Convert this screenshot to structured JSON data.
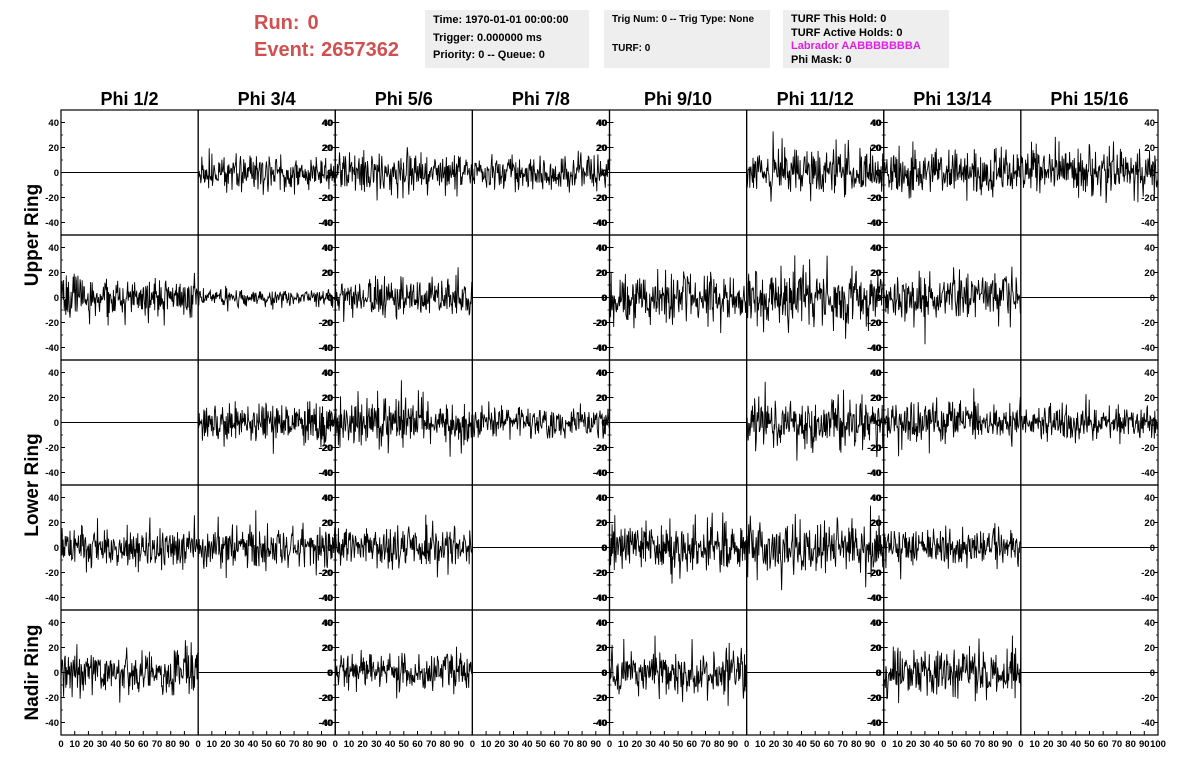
{
  "header": {
    "run_label": "Run:",
    "run_value": "0",
    "event_label": "Event:",
    "event_value": "2657362",
    "time_text": "Time: 1970-01-01 00:00:00",
    "trigger_text": "Trigger: 0.000000 ms",
    "priority_text": "Priority: 0 -- Queue: 0",
    "trig_num_text": "Trig Num: 0 -- Trig Type: None",
    "turf_text": "TURF: 0",
    "turf_hold_text": "TURF This Hold: 0",
    "turf_active_text": "TURF Active Holds: 0",
    "labrador_text": "Labrador AABBBBBBBA",
    "phi_mask_text": "Phi Mask: 0",
    "labrador_color": "#e020e0",
    "run_color": "#d05050"
  },
  "chart_data": {
    "type": "line",
    "title": "",
    "columns": [
      "Phi 1/2",
      "Phi 3/4",
      "Phi 5/6",
      "Phi 7/8",
      "Phi 9/10",
      "Phi 11/12",
      "Phi 13/14",
      "Phi 15/16"
    ],
    "ring_groups": [
      {
        "name": "Upper Ring",
        "rows": [
          0,
          1
        ]
      },
      {
        "name": "Lower Ring",
        "rows": [
          2,
          3
        ]
      },
      {
        "name": "Nadir Ring",
        "rows": [
          4
        ]
      }
    ],
    "xlim": [
      0,
      100
    ],
    "ylim": [
      -50,
      50
    ],
    "x_ticks": [
      0,
      10,
      20,
      30,
      40,
      50,
      60,
      70,
      80,
      90,
      100
    ],
    "y_ticks": [
      -40,
      -20,
      0,
      20,
      40
    ],
    "grid": false,
    "line_color": "#000000",
    "traces": [
      [
        {
          "active": false,
          "amplitude": 0,
          "seed": 1
        },
        {
          "active": true,
          "amplitude": 11,
          "seed": 2
        },
        {
          "active": true,
          "amplitude": 13,
          "seed": 3
        },
        {
          "active": true,
          "amplitude": 10,
          "seed": 4
        },
        {
          "active": false,
          "amplitude": 0,
          "seed": 5
        },
        {
          "active": true,
          "amplitude": 15,
          "seed": 6
        },
        {
          "active": true,
          "amplitude": 15,
          "seed": 7
        },
        {
          "active": true,
          "amplitude": 16,
          "seed": 8
        }
      ],
      [
        {
          "active": true,
          "amplitude": 14,
          "seed": 9
        },
        {
          "active": true,
          "amplitude": 5,
          "seed": 10
        },
        {
          "active": true,
          "amplitude": 12,
          "seed": 11
        },
        {
          "active": false,
          "amplitude": 0,
          "seed": 12
        },
        {
          "active": true,
          "amplitude": 16,
          "seed": 13
        },
        {
          "active": true,
          "amplitude": 19,
          "seed": 14
        },
        {
          "active": true,
          "amplitude": 13,
          "seed": 15
        },
        {
          "active": false,
          "amplitude": 0,
          "seed": 16
        }
      ],
      [
        {
          "active": false,
          "amplitude": 0,
          "seed": 17
        },
        {
          "active": true,
          "amplitude": 12,
          "seed": 18
        },
        {
          "active": true,
          "amplitude": 15,
          "seed": 19
        },
        {
          "active": true,
          "amplitude": 10,
          "seed": 20
        },
        {
          "active": false,
          "amplitude": 0,
          "seed": 21
        },
        {
          "active": true,
          "amplitude": 17,
          "seed": 22
        },
        {
          "active": true,
          "amplitude": 14,
          "seed": 23
        },
        {
          "active": true,
          "amplitude": 11,
          "seed": 24
        }
      ],
      [
        {
          "active": true,
          "amplitude": 13,
          "seed": 25
        },
        {
          "active": true,
          "amplitude": 14,
          "seed": 26
        },
        {
          "active": true,
          "amplitude": 13,
          "seed": 27
        },
        {
          "active": false,
          "amplitude": 0,
          "seed": 28
        },
        {
          "active": true,
          "amplitude": 15,
          "seed": 29
        },
        {
          "active": true,
          "amplitude": 17,
          "seed": 30
        },
        {
          "active": true,
          "amplitude": 12,
          "seed": 31
        },
        {
          "active": false,
          "amplitude": 0,
          "seed": 32
        }
      ],
      [
        {
          "active": true,
          "amplitude": 14,
          "seed": 33
        },
        {
          "active": false,
          "amplitude": 0,
          "seed": 34
        },
        {
          "active": true,
          "amplitude": 12,
          "seed": 35
        },
        {
          "active": false,
          "amplitude": 0,
          "seed": 36
        },
        {
          "active": true,
          "amplitude": 14,
          "seed": 37
        },
        {
          "active": false,
          "amplitude": 0,
          "seed": 38
        },
        {
          "active": true,
          "amplitude": 15,
          "seed": 39
        },
        {
          "active": false,
          "amplitude": 0,
          "seed": 40
        }
      ]
    ]
  }
}
